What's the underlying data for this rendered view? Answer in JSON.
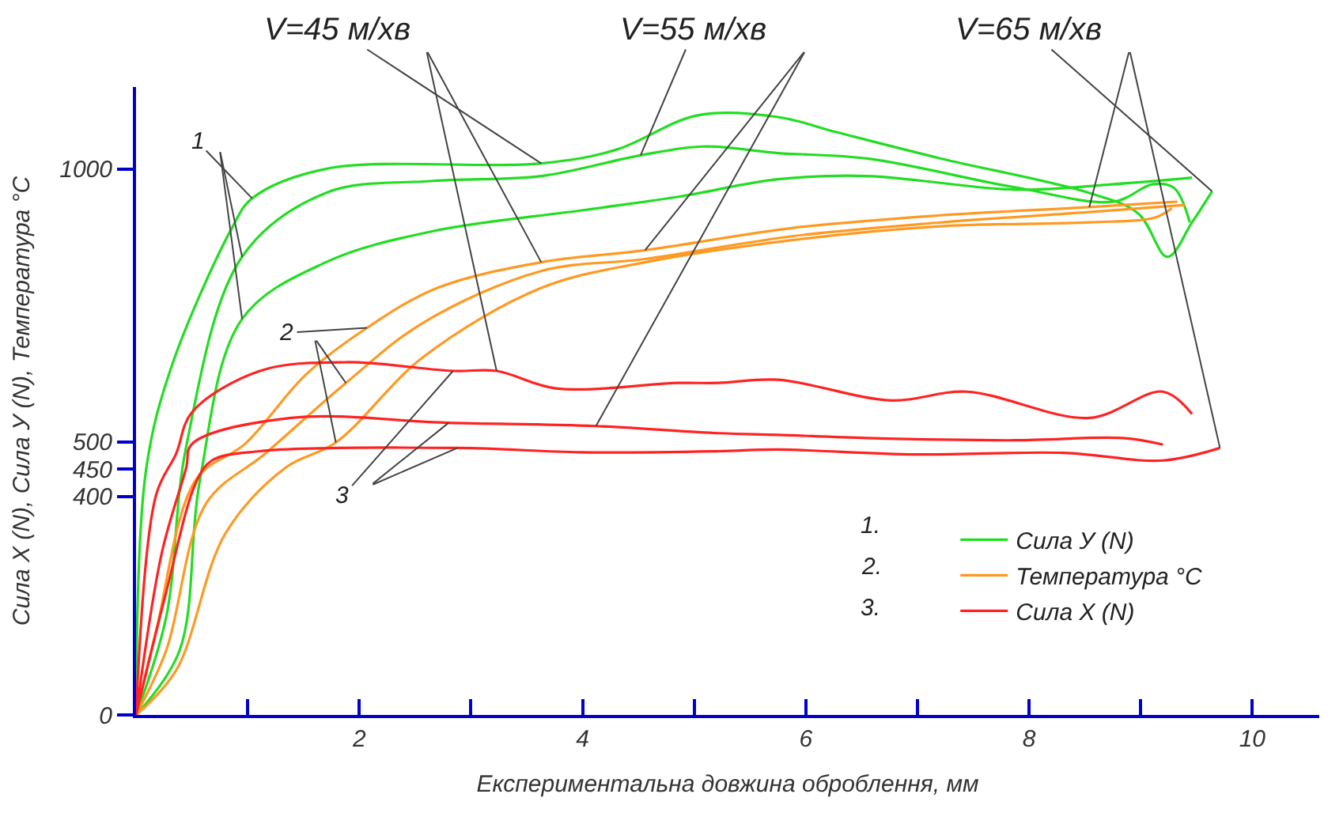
{
  "chart_data": {
    "type": "line",
    "xlabel": "Експериментальна довжина оброблення, мм",
    "ylabel": "Сила X (N), Сила У (N), Температура °С",
    "xlim": [
      0,
      10.6
    ],
    "xticks": [
      {
        "value": 1,
        "label": null
      },
      2,
      {
        "value": 3,
        "label": null
      },
      4,
      {
        "value": 5,
        "label": null
      },
      6,
      {
        "value": 7,
        "label": null
      },
      8,
      {
        "value": 9,
        "label": null
      },
      10
    ],
    "ylim": [
      0,
      1150
    ],
    "yticks": [
      0,
      400,
      450,
      500,
      1000
    ],
    "legend": "bottom right",
    "marker": "none",
    "line_style": "solid",
    "series": [
      {
        "name": "Сила У (N)",
        "color": "#22dd22",
        "x": [
          0,
          0.09,
          0.32,
          0.86,
          1.04,
          1.7,
          3.63,
          4.3,
          5.03,
          5.75,
          6.28,
          7.21,
          8.54,
          8.98,
          9.24,
          9.46,
          9.64
        ],
        "values": [
          0,
          449,
          639,
          892,
          946,
          1000,
          1010,
          1035,
          1098,
          1095,
          1067,
          1019,
          956,
          918,
          839,
          902,
          959
        ]
      },
      {
        "color": "#22dd22",
        "x": [
          0,
          0.27,
          0.45,
          0.95,
          1.7,
          2.66,
          3.63,
          4.52,
          5.08,
          5.75,
          6.55,
          7.88,
          8.76,
          9.11,
          9.3,
          9.44
        ],
        "values": [
          0,
          179,
          492,
          839,
          956,
          978,
          987,
          1025,
          1041,
          1029,
          1019,
          966,
          940,
          972,
          965,
          902
        ]
      },
      {
        "color": "#22dd22",
        "x": [
          0,
          0.39,
          0.57,
          0.95,
          1.7,
          2.66,
          3.99,
          4.86,
          5.75,
          6.55,
          7.88,
          8.76,
          9.46
        ],
        "values": [
          0,
          118,
          427,
          725,
          829,
          886,
          924,
          949,
          981,
          987,
          962,
          972,
          984
        ]
      },
      {
        "name": "Температура °С",
        "color": "#ff9922",
        "x": [
          0,
          0.18,
          0.54,
          0.98,
          1.52,
          2.07,
          2.7,
          3.63,
          4.56,
          5.89,
          7.21,
          8.54,
          9.33
        ],
        "values": [
          0,
          154,
          432,
          497,
          623,
          709,
          782,
          829,
          851,
          892,
          915,
          930,
          940
        ]
      },
      {
        "color": "#ff9922",
        "x": [
          0,
          0.27,
          0.63,
          1.16,
          1.88,
          2.57,
          3.63,
          4.56,
          5.89,
          7.21,
          8.54,
          9.4
        ],
        "values": [
          0,
          118,
          388,
          479,
          608,
          718,
          813,
          835,
          877,
          902,
          921,
          934
        ]
      },
      {
        "color": "#ff9922",
        "x": [
          0,
          0.36,
          0.8,
          1.34,
          1.79,
          2.57,
          3.63,
          4.56,
          5.89,
          7.21,
          8.54,
          9.13,
          9.28
        ],
        "values": [
          0,
          82,
          332,
          453,
          499,
          655,
          782,
          829,
          870,
          895,
          902,
          911,
          928
        ]
      },
      {
        "name": "Сила X (N)",
        "color": "#ff2222",
        "x": [
          0,
          0.18,
          0.36,
          0.5,
          1.11,
          1.88,
          2.84,
          3.23,
          3.76,
          4.86,
          5.22,
          5.75,
          6.77,
          7.44,
          8.54,
          9.2,
          9.46
        ],
        "values": [
          0,
          403,
          479,
          554,
          630,
          646,
          630,
          630,
          598,
          608,
          608,
          614,
          576,
          592,
          544,
          592,
          551
        ]
      },
      {
        "color": "#ff2222",
        "x": [
          0,
          0.23,
          0.45,
          0.5,
          1.39,
          2.8,
          4.12,
          5.22,
          5.75,
          6.55,
          7.88,
          8.84,
          9.2
        ],
        "values": [
          0,
          296,
          453,
          496,
          544,
          535,
          529,
          516,
          513,
          507,
          503,
          507,
          495
        ]
      },
      {
        "color": "#ff2222",
        "x": [
          0,
          0.27,
          0.54,
          0.68,
          1.11,
          2.88,
          3.99,
          5.22,
          5.75,
          6.98,
          8.31,
          9.2,
          9.71
        ],
        "values": [
          0,
          225,
          427,
          466,
          483,
          489,
          481,
          483,
          486,
          477,
          480,
          466,
          489
        ]
      }
    ],
    "annotations": [
      {
        "text": "V=45 м/хв",
        "x": 3.63,
        "y": 1010
      },
      {
        "text": "V=55 м/хв",
        "x": 4.52,
        "y": 1025
      },
      {
        "text": "V=65 м/хв",
        "x": 9.64,
        "y": 959
      },
      {
        "text": "1",
        "x": 1.04,
        "y": 946
      },
      {
        "text": "2",
        "x": 2.07,
        "y": 709
      },
      {
        "text": "3",
        "x": 2.84,
        "y": 630
      },
      "1.",
      "2.",
      "3."
    ]
  }
}
